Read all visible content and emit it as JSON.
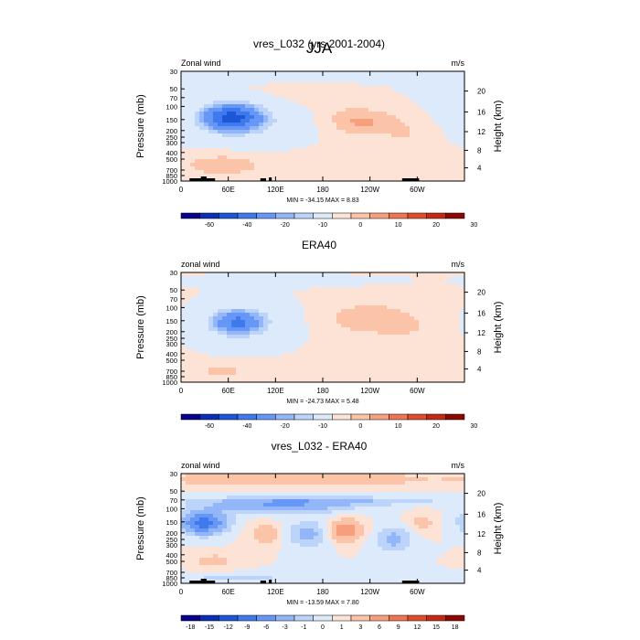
{
  "figure_title": "JJA",
  "chart_data": [
    {
      "type": "heatmap",
      "title": "vres_L032 (yrs 2001-2004)",
      "left_label": "Zonal wind",
      "right_label": "m/s",
      "xlabel": "",
      "ylabel": "Pressure (mb)",
      "y2label": "Height (km)",
      "x_ticks": [
        "0",
        "60E",
        "120E",
        "180",
        "120W",
        "60W"
      ],
      "y_ticks": [
        "30",
        "50",
        "70",
        "100",
        "150",
        "200",
        "250",
        "300",
        "400",
        "500",
        "700",
        "850",
        "1000"
      ],
      "y2_ticks": [
        "20",
        "16",
        "12",
        "8",
        "4"
      ],
      "stats": "MIN = -34.15   MAX =   8.83",
      "min": -34.15,
      "max": 8.83,
      "colorbar_labels": [
        "-60",
        "-40",
        "-20",
        "-10",
        "0",
        "10",
        "20",
        "30"
      ]
    },
    {
      "type": "heatmap",
      "title": "ERA40",
      "left_label": "zonal wind",
      "right_label": "m/s",
      "xlabel": "",
      "ylabel": "Pressure (mb)",
      "y2label": "Height (km)",
      "x_ticks": [
        "0",
        "60E",
        "120E",
        "180",
        "120W",
        "60W"
      ],
      "y_ticks": [
        "30",
        "50",
        "70",
        "100",
        "150",
        "200",
        "250",
        "300",
        "400",
        "500",
        "700",
        "850",
        "1000"
      ],
      "y2_ticks": [
        "20",
        "16",
        "12",
        "8",
        "4"
      ],
      "stats": "MIN = -24.73   MAX =   5.48",
      "min": -24.73,
      "max": 5.48,
      "colorbar_labels": [
        "-60",
        "-40",
        "-20",
        "-10",
        "0",
        "10",
        "20",
        "30"
      ]
    },
    {
      "type": "heatmap",
      "title": "vres_L032 - ERA40",
      "left_label": "zonal wind",
      "right_label": "m/s",
      "xlabel": "",
      "ylabel": "Pressure (mb)",
      "y2label": "Height (km)",
      "x_ticks": [
        "0",
        "60E",
        "120E",
        "180",
        "120W",
        "60W"
      ],
      "y_ticks": [
        "30",
        "50",
        "70",
        "100",
        "150",
        "200",
        "250",
        "300",
        "400",
        "500",
        "700",
        "850",
        "1000"
      ],
      "y2_ticks": [
        "20",
        "16",
        "12",
        "8",
        "4"
      ],
      "stats": "MIN = -13.59   MAX =   7.80",
      "min": -13.59,
      "max": 7.8,
      "colorbar_labels": [
        "-18",
        "-15",
        "-12",
        "-9",
        "-6",
        "-3",
        "-1",
        "0",
        "1",
        "3",
        "6",
        "9",
        "12",
        "15",
        "18"
      ]
    }
  ],
  "colors": {
    "palette": [
      "#08038a",
      "#0a2fb5",
      "#1e56d8",
      "#3f79ee",
      "#6797f6",
      "#93b6f8",
      "#bcd3fa",
      "#dceafc",
      "#fde3d6",
      "#fbc3a8",
      "#f59f7c",
      "#ec7552",
      "#de4d2c",
      "#c42a12",
      "#8a0a02"
    ],
    "land": "#000000",
    "white": "#ffffff"
  }
}
